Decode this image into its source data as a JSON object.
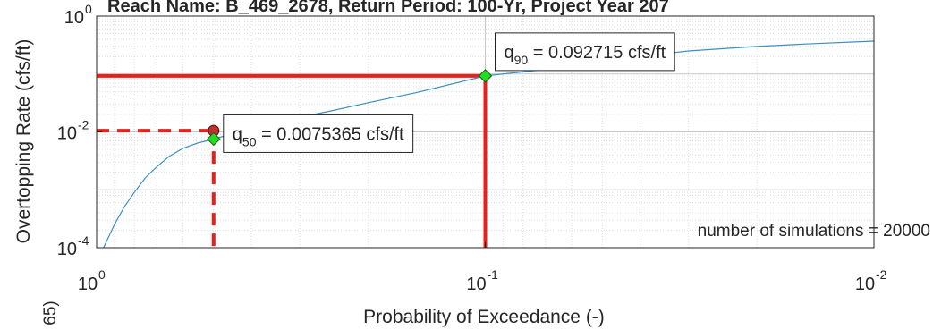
{
  "chart_data": {
    "type": "line",
    "title": "Reach Name: B_469_2678, Return Period: 100-Yr, Project Year 207",
    "xlabel": "Probability of Exceedance (-)",
    "ylabel": "Overtopping Rate (cfs/ft)",
    "side_label": "65)",
    "x_scale": "log-reversed",
    "y_scale": "log",
    "xlim": [
      1.0,
      0.01
    ],
    "ylim": [
      0.0001,
      1.0
    ],
    "grid": true,
    "x_ticks": [
      {
        "value": 1.0,
        "base": "10",
        "exp": "0"
      },
      {
        "value": 0.1,
        "base": "10",
        "exp": "-1"
      },
      {
        "value": 0.01,
        "base": "10",
        "exp": "-2"
      }
    ],
    "y_ticks": [
      {
        "value": 1.0,
        "base": "10",
        "exp": "0"
      },
      {
        "value": 0.01,
        "base": "10",
        "exp": "-2"
      },
      {
        "value": 0.0001,
        "base": "10",
        "exp": "-4"
      }
    ],
    "series": [
      {
        "color": "#3b8fc4",
        "x": [
          0.96,
          0.9,
          0.85,
          0.8,
          0.75,
          0.7,
          0.65,
          0.6,
          0.55,
          0.5,
          0.45,
          0.4,
          0.35,
          0.3,
          0.25,
          0.2,
          0.15,
          0.1,
          0.07,
          0.05,
          0.04,
          0.03,
          0.02,
          0.015,
          0.01
        ],
        "y": [
          0.0001,
          0.00025,
          0.0005,
          0.0009,
          0.0016,
          0.0025,
          0.0038,
          0.0052,
          0.0064,
          0.0075365,
          0.0092,
          0.011,
          0.014,
          0.018,
          0.023,
          0.032,
          0.048,
          0.092715,
          0.12,
          0.17,
          0.2,
          0.25,
          0.3,
          0.33,
          0.37
        ]
      }
    ],
    "markers": [
      {
        "x": 0.5,
        "y": 0.0105,
        "color": "#c0302b"
      },
      {
        "x": 0.5,
        "y": 0.0075365,
        "color": "#22dd22"
      },
      {
        "x": 0.1,
        "y": 0.092715,
        "color": "#22dd22"
      }
    ],
    "reference_lines": [
      {
        "x": 0.5,
        "y": 0.0105,
        "style": "dashed",
        "color": "#e8201b"
      },
      {
        "x": 0.1,
        "y": 0.092715,
        "style": "solid",
        "color": "#e8201b"
      }
    ],
    "annotations": [
      {
        "sym": "q",
        "sub": "50",
        "text": " = 0.0075365 cfs/ft",
        "x": 0.5,
        "y": 0.0075365
      },
      {
        "sym": "q",
        "sub": "90",
        "text": " = 0.092715 cfs/ft",
        "x": 0.1,
        "y": 0.092715
      }
    ],
    "note": "number of simulations = 20000"
  }
}
